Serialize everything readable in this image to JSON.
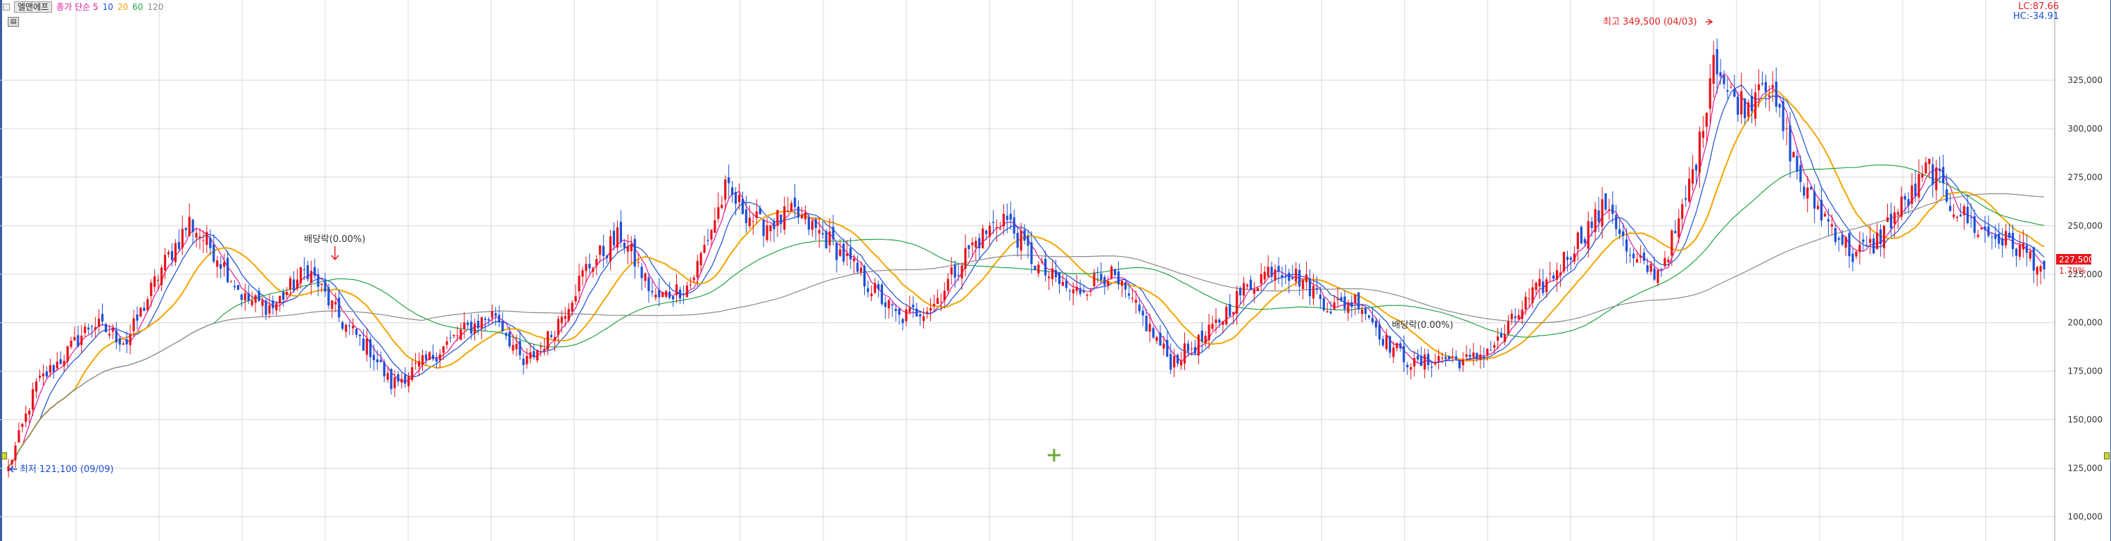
{
  "header": {
    "stock_name": "엘앤에프",
    "indicators": [
      {
        "label": "종가 단순 5",
        "color": "#e0179b"
      },
      {
        "label": "10",
        "color": "#1b4fd6"
      },
      {
        "label": "20",
        "color": "#f2a500"
      },
      {
        "label": "60",
        "color": "#22a543"
      },
      {
        "label": "120",
        "color": "#8a8a8a"
      }
    ],
    "lc_label": "LC:87.66",
    "hc_label": "HC:-34.91"
  },
  "annotations": {
    "high": "최고 349,500 (04/03)",
    "low": "최저 121,100 (09/09)",
    "ex_dividend_1": "배당락(0.00%)",
    "ex_dividend_2": "배당락(0.00%)"
  },
  "current_price": {
    "value": "227,500",
    "change": "1.79%"
  },
  "colors": {
    "up": "#e8121a",
    "down": "#1b4fd6",
    "grid": "#d8d8d8",
    "price_tag": "#e8121a"
  },
  "chart_data": {
    "type": "candlestick",
    "y_ticks": [
      325000,
      300000,
      275000,
      250000,
      225000,
      200000,
      175000,
      150000,
      125000,
      100000
    ],
    "y_tick_labels": [
      "325,000",
      "300,000",
      "275,000",
      "250,000",
      "225,000",
      "200,000",
      "175,000",
      "150,000",
      "125,000",
      "100,000"
    ],
    "ylim": [
      90000,
      362000
    ],
    "anchors": [
      {
        "i": 0,
        "v": 125000
      },
      {
        "i": 8,
        "v": 168000
      },
      {
        "i": 16,
        "v": 183000
      },
      {
        "i": 24,
        "v": 200000
      },
      {
        "i": 34,
        "v": 190000
      },
      {
        "i": 44,
        "v": 228000
      },
      {
        "i": 52,
        "v": 252000
      },
      {
        "i": 60,
        "v": 235000
      },
      {
        "i": 68,
        "v": 212000
      },
      {
        "i": 76,
        "v": 208000
      },
      {
        "i": 86,
        "v": 228000
      },
      {
        "i": 96,
        "v": 200000
      },
      {
        "i": 104,
        "v": 186000
      },
      {
        "i": 110,
        "v": 168000
      },
      {
        "i": 120,
        "v": 180000
      },
      {
        "i": 130,
        "v": 195000
      },
      {
        "i": 140,
        "v": 205000
      },
      {
        "i": 148,
        "v": 178000
      },
      {
        "i": 156,
        "v": 194000
      },
      {
        "i": 166,
        "v": 228000
      },
      {
        "i": 176,
        "v": 245000
      },
      {
        "i": 186,
        "v": 212000
      },
      {
        "i": 196,
        "v": 220000
      },
      {
        "i": 206,
        "v": 268000
      },
      {
        "i": 216,
        "v": 250000
      },
      {
        "i": 226,
        "v": 256000
      },
      {
        "i": 236,
        "v": 242000
      },
      {
        "i": 246,
        "v": 222000
      },
      {
        "i": 256,
        "v": 202000
      },
      {
        "i": 266,
        "v": 210000
      },
      {
        "i": 276,
        "v": 238000
      },
      {
        "i": 286,
        "v": 255000
      },
      {
        "i": 296,
        "v": 228000
      },
      {
        "i": 306,
        "v": 215000
      },
      {
        "i": 316,
        "v": 226000
      },
      {
        "i": 326,
        "v": 202000
      },
      {
        "i": 334,
        "v": 180000
      },
      {
        "i": 344,
        "v": 192000
      },
      {
        "i": 354,
        "v": 215000
      },
      {
        "i": 364,
        "v": 230000
      },
      {
        "i": 372,
        "v": 222000
      },
      {
        "i": 380,
        "v": 208000
      },
      {
        "i": 388,
        "v": 212000
      },
      {
        "i": 396,
        "v": 190000
      },
      {
        "i": 404,
        "v": 178000
      },
      {
        "i": 412,
        "v": 182000
      },
      {
        "i": 420,
        "v": 180000
      },
      {
        "i": 428,
        "v": 190000
      },
      {
        "i": 436,
        "v": 210000
      },
      {
        "i": 444,
        "v": 225000
      },
      {
        "i": 452,
        "v": 245000
      },
      {
        "i": 460,
        "v": 262000
      },
      {
        "i": 466,
        "v": 232000
      },
      {
        "i": 474,
        "v": 226000
      },
      {
        "i": 480,
        "v": 250000
      },
      {
        "i": 486,
        "v": 292000
      },
      {
        "i": 490,
        "v": 340000
      },
      {
        "i": 494,
        "v": 318000
      },
      {
        "i": 500,
        "v": 312000
      },
      {
        "i": 504,
        "v": 330000
      },
      {
        "i": 510,
        "v": 300000
      },
      {
        "i": 516,
        "v": 268000
      },
      {
        "i": 524,
        "v": 250000
      },
      {
        "i": 530,
        "v": 235000
      },
      {
        "i": 536,
        "v": 240000
      },
      {
        "i": 542,
        "v": 256000
      },
      {
        "i": 548,
        "v": 268000
      },
      {
        "i": 552,
        "v": 281000
      },
      {
        "i": 558,
        "v": 262000
      },
      {
        "i": 566,
        "v": 248000
      },
      {
        "i": 574,
        "v": 242000
      },
      {
        "i": 580,
        "v": 236000
      },
      {
        "i": 585,
        "v": 227500
      }
    ]
  }
}
